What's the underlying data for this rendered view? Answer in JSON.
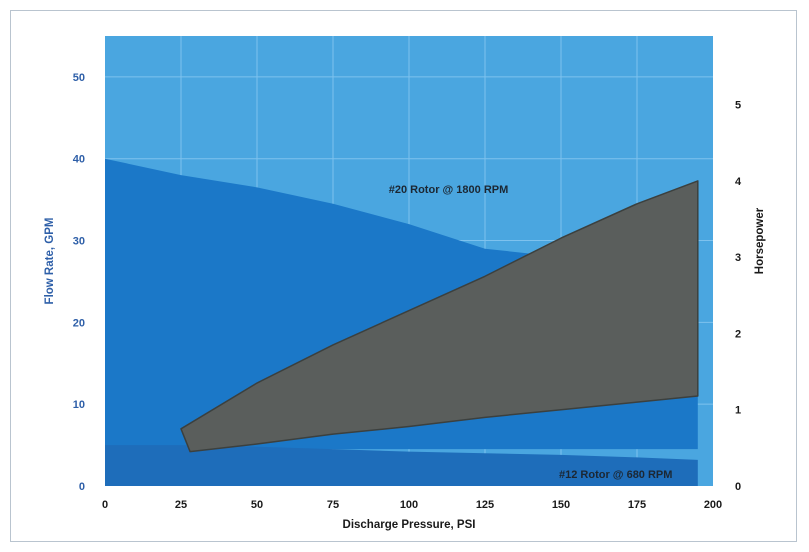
{
  "chart_data": {
    "type": "area",
    "x": [
      0,
      25,
      50,
      75,
      100,
      125,
      150,
      175,
      200
    ],
    "xlabel": "Discharge Pressure, PSI",
    "ylabel": "Flow Rate, GPM",
    "y2label": "Horsepower",
    "xlim": [
      0,
      200
    ],
    "ylim": [
      0,
      55
    ],
    "y2lim": [
      0,
      5.9
    ],
    "x_ticks": [
      "0",
      "25",
      "50",
      "75",
      "100",
      "125",
      "150",
      "175",
      "200"
    ],
    "y_ticks": [
      "0",
      "10",
      "20",
      "30",
      "40",
      "50"
    ],
    "y2_ticks": [
      "0",
      "1",
      "2",
      "3",
      "4",
      "5"
    ],
    "grid": true,
    "series": [
      {
        "name": "#20 Rotor @ 1800 RPM",
        "axis": "left",
        "x": [
          0,
          25,
          50,
          75,
          100,
          125,
          150,
          175,
          195
        ],
        "values": [
          40.0,
          38.0,
          36.5,
          34.5,
          32.0,
          29.0,
          28.0,
          27.0,
          26.5
        ],
        "lower": 4.5
      },
      {
        "name": "#12 Rotor @ 680 RPM",
        "axis": "left",
        "x": [
          0,
          25,
          50,
          75,
          100,
          125,
          150,
          175,
          195
        ],
        "values": [
          5.0,
          5.0,
          4.8,
          4.5,
          4.2,
          4.0,
          3.8,
          3.5,
          3.2
        ],
        "lower": 0
      },
      {
        "name": "Horsepower",
        "axis": "right",
        "x_upper": [
          25,
          50,
          75,
          100,
          125,
          150,
          175,
          195
        ],
        "upper": [
          0.75,
          1.35,
          1.85,
          2.3,
          2.75,
          3.25,
          3.7,
          4.0
        ],
        "x_lower": [
          28,
          50,
          75,
          100,
          125,
          150,
          175,
          195
        ],
        "lower": [
          0.45,
          0.55,
          0.68,
          0.78,
          0.9,
          1.0,
          1.1,
          1.18
        ]
      }
    ],
    "annotations": [
      "#20 Rotor @ 1800 RPM",
      "#12 Rotor @ 680 RPM"
    ],
    "colors": {
      "plot_bg": "#4aa6e0",
      "grid": "#7ec2ee",
      "rotor20": "#1b78c8",
      "rotor12": "#1e6dba",
      "horsepower": "#5a5e5c",
      "horsepower_edge": "#3c403e"
    }
  }
}
